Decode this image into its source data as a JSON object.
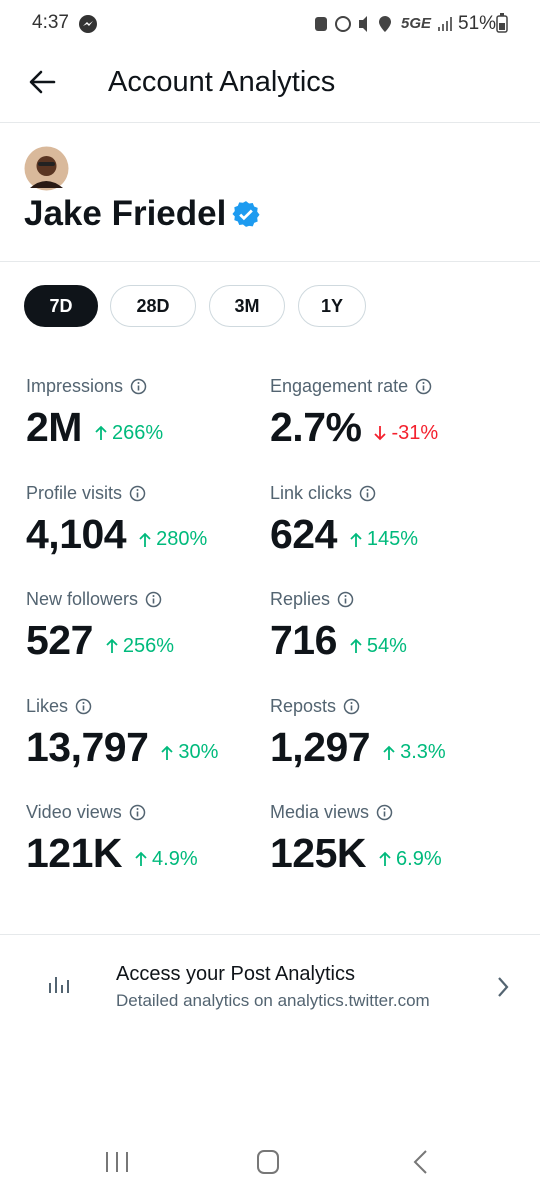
{
  "status_bar": {
    "time": "4:37",
    "network": "5GE",
    "battery": "51%"
  },
  "header": {
    "title": "Account Analytics"
  },
  "profile": {
    "name": "Jake Friedel"
  },
  "tabs": {
    "items": [
      "7D",
      "28D",
      "3M",
      "1Y"
    ],
    "selected": 0
  },
  "metrics": [
    {
      "label": "Impressions",
      "value": "2M",
      "change": "266%",
      "direction": "up"
    },
    {
      "label": "Engagement rate",
      "value": "2.7%",
      "change": "-31%",
      "direction": "down"
    },
    {
      "label": "Profile visits",
      "value": "4,104",
      "change": "280%",
      "direction": "up"
    },
    {
      "label": "Link clicks",
      "value": "624",
      "change": "145%",
      "direction": "up"
    },
    {
      "label": "New followers",
      "value": "527",
      "change": "256%",
      "direction": "up"
    },
    {
      "label": "Replies",
      "value": "716",
      "change": "54%",
      "direction": "up"
    },
    {
      "label": "Likes",
      "value": "13,797",
      "change": "30%",
      "direction": "up"
    },
    {
      "label": "Reposts",
      "value": "1,297",
      "change": "3.3%",
      "direction": "up"
    },
    {
      "label": "Video views",
      "value": "121K",
      "change": "4.9%",
      "direction": "up"
    },
    {
      "label": "Media views",
      "value": "125K",
      "change": "6.9%",
      "direction": "up"
    }
  ],
  "footer": {
    "title": "Access your Post Analytics",
    "subtitle": "Detailed analytics on analytics.twitter.com"
  }
}
